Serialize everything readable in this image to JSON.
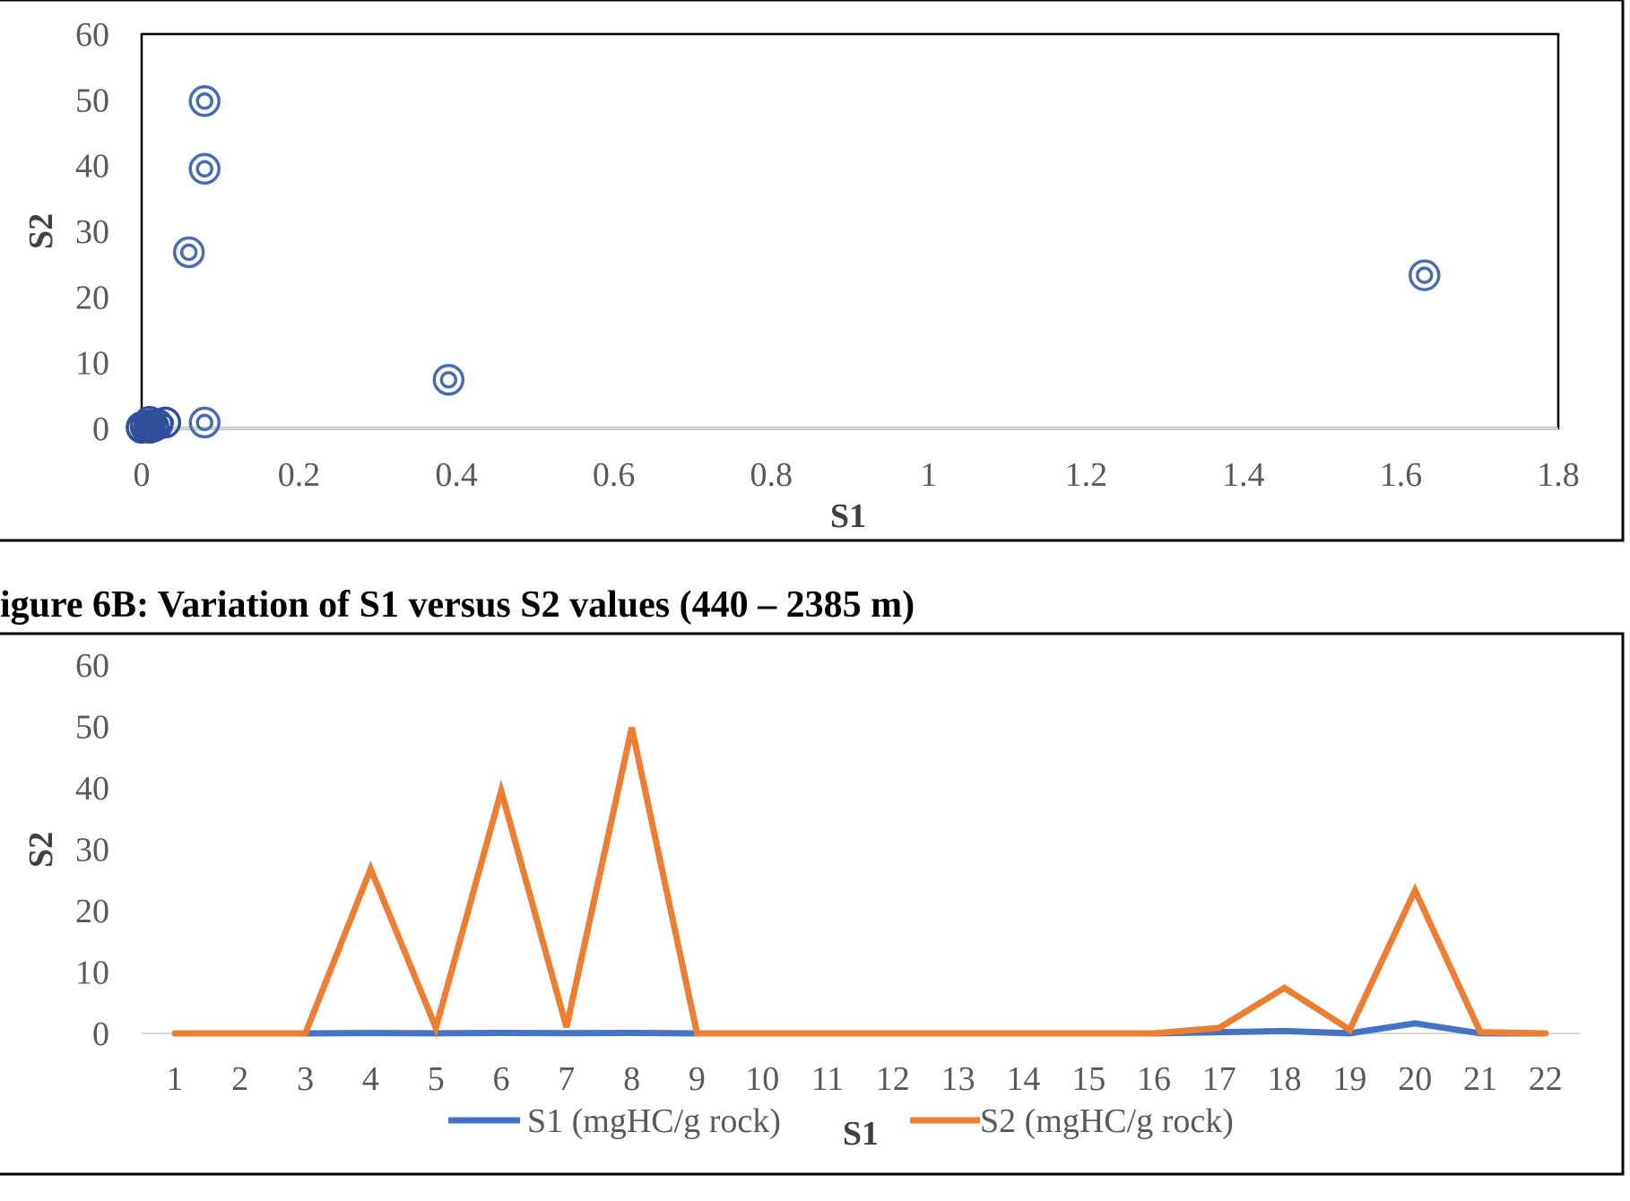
{
  "figure_caption": "igure 6B: Variation of S1 versus S2 values (440 – 2385 m)",
  "colors": {
    "marker": "#4a6bb0",
    "marker_dense": "#2f4f9a",
    "s1_line": "#4472c4",
    "s2_line": "#ed7d31",
    "gridline": "#d9d9d9",
    "frame": "#000000",
    "tick_text": "#595959"
  },
  "chart_data": [
    {
      "type": "scatter",
      "title": "",
      "xlabel": "S1",
      "ylabel": "S2",
      "xlim": [
        0,
        1.8
      ],
      "ylim": [
        0,
        60
      ],
      "x_ticks": [
        "0",
        "0.2",
        "0.4",
        "0.6",
        "0.8",
        "1",
        "1.2",
        "1.4",
        "1.6",
        "1.8"
      ],
      "y_ticks": [
        "0",
        "10",
        "20",
        "30",
        "40",
        "50",
        "60"
      ],
      "marker": "double-circle",
      "grid": "horizontal baseline only",
      "points": [
        {
          "x": 0.0,
          "y": 0.1
        },
        {
          "x": 0.0,
          "y": 0.2
        },
        {
          "x": 0.005,
          "y": 0.3
        },
        {
          "x": 0.01,
          "y": 0.2
        },
        {
          "x": 0.01,
          "y": 0.5
        },
        {
          "x": 0.01,
          "y": 1.0
        },
        {
          "x": 0.01,
          "y": 0.1
        },
        {
          "x": 0.015,
          "y": 0.3
        },
        {
          "x": 0.02,
          "y": 0.6
        },
        {
          "x": 0.03,
          "y": 0.9
        },
        {
          "x": 0.06,
          "y": 26.8
        },
        {
          "x": 0.08,
          "y": 39.5
        },
        {
          "x": 0.08,
          "y": 49.8
        },
        {
          "x": 0.08,
          "y": 0.9
        },
        {
          "x": 0.39,
          "y": 7.4
        },
        {
          "x": 1.63,
          "y": 23.3
        }
      ]
    },
    {
      "type": "line",
      "title": "",
      "xlabel": "S1",
      "ylabel": "S2",
      "ylim": [
        0,
        60
      ],
      "y_ticks": [
        "0",
        "10",
        "20",
        "30",
        "40",
        "50",
        "60"
      ],
      "categories": [
        "1",
        "2",
        "3",
        "4",
        "5",
        "6",
        "7",
        "8",
        "9",
        "10",
        "11",
        "12",
        "13",
        "14",
        "15",
        "16",
        "17",
        "18",
        "19",
        "20",
        "21",
        "22"
      ],
      "legend_position": "bottom",
      "grid": "horizontal baseline only",
      "series": [
        {
          "name": "S1 (mgHC/g rock)",
          "color": "#4472c4",
          "values": [
            0,
            0,
            0,
            0.06,
            0.02,
            0.08,
            0.03,
            0.08,
            0,
            0,
            0,
            0,
            0,
            0,
            0,
            0,
            0.2,
            0.39,
            0.01,
            1.63,
            0.01,
            0
          ]
        },
        {
          "name": "S2 (mgHC/g rock)",
          "color": "#ed7d31",
          "values": [
            0,
            0,
            0,
            26.8,
            0.9,
            39.5,
            1.0,
            49.8,
            0,
            0,
            0,
            0,
            0,
            0,
            0,
            0,
            0.9,
            7.4,
            0.6,
            23.3,
            0.2,
            0
          ]
        }
      ]
    }
  ]
}
